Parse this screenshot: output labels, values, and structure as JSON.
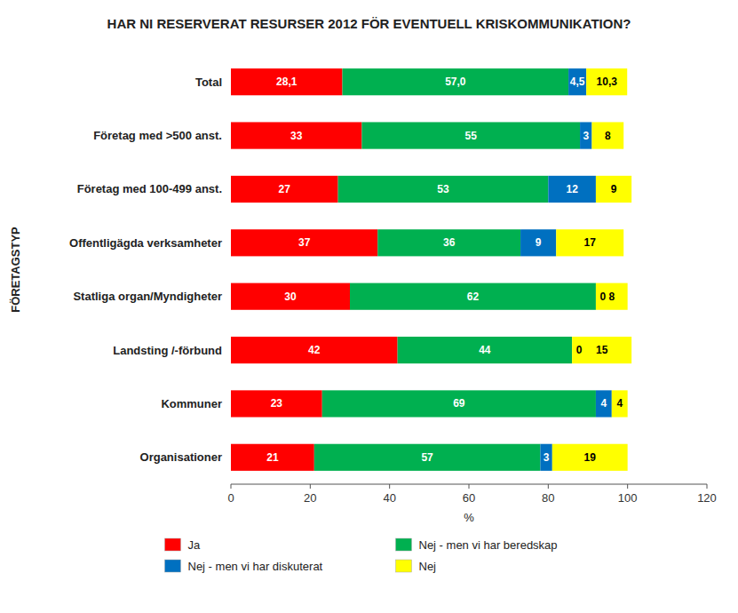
{
  "chart_data": {
    "type": "bar",
    "orientation": "horizontal",
    "stacked": true,
    "data_labels": true,
    "legend": "bottom",
    "grid": false,
    "title": "HAR NI RESERVERAT RESURSER 2012 FÖR EVENTUELL KRISKOMMUNIKATION?",
    "xlabel": "%",
    "ylabel": "FÖRETAGSTYP",
    "categories": [
      "Organisationer",
      "Kommuner",
      "Landsting /-förbund",
      "Statliga organ/Myndigheter",
      "Offentligägda verksamheter",
      "Företag med 100-499 anst.",
      "Företag med >500 anst.",
      "Total"
    ],
    "series": [
      {
        "name": "Ja",
        "color": "#ff0000",
        "values": [
          21,
          23,
          42,
          30,
          37,
          27,
          33,
          28.1
        ],
        "value_labels": [
          "21",
          "23",
          "42",
          "30",
          "37",
          "27",
          "33",
          "28,1"
        ]
      },
      {
        "name": "Nej - men vi har beredskap",
        "color": "#00b050",
        "values": [
          57,
          69,
          44,
          62,
          36,
          53,
          55,
          57.0
        ],
        "value_labels": [
          "57",
          "69",
          "44",
          "62",
          "36",
          "53",
          "55",
          "57,0"
        ]
      },
      {
        "name": "Nej - men vi har diskuterat",
        "color": "#0070c0",
        "values": [
          3,
          4,
          0,
          0,
          9,
          12,
          3,
          4.5
        ],
        "value_labels": [
          "3",
          "4",
          "0",
          "0",
          "9",
          "12",
          "3",
          "4,5"
        ]
      },
      {
        "name": "Nej",
        "color": "#ffff00",
        "values": [
          19,
          4,
          15,
          8,
          17,
          9,
          8,
          10.3
        ],
        "value_labels": [
          "19",
          "4",
          "15",
          "8",
          "17",
          "9",
          "8",
          "10,3"
        ]
      }
    ],
    "xlim": [
      0,
      120
    ],
    "xticks": [
      0,
      20,
      40,
      60,
      80,
      100,
      120
    ]
  }
}
